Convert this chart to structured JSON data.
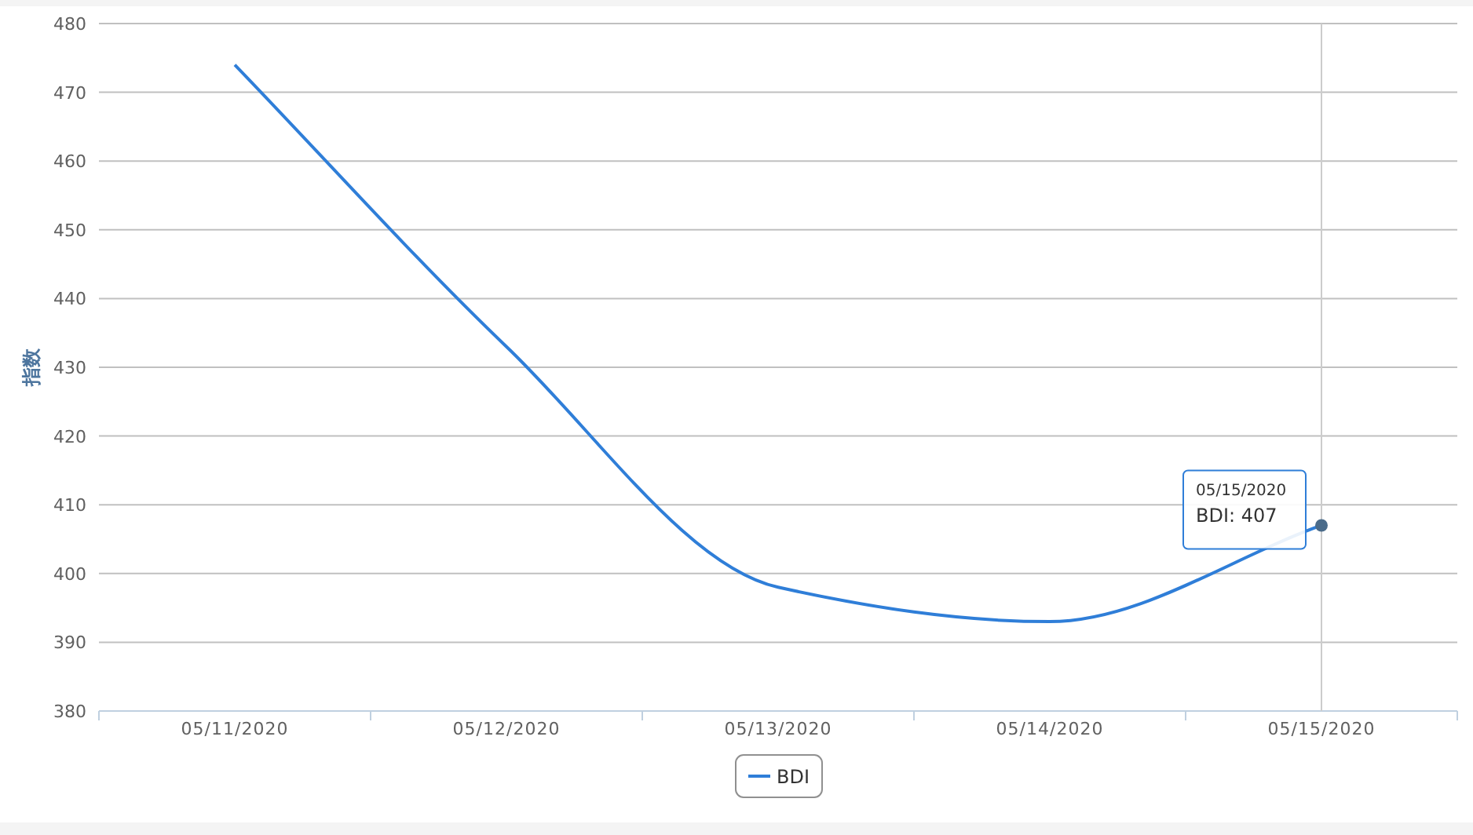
{
  "chart_data": {
    "type": "line",
    "ylabel": "指数",
    "categories": [
      "05/11/2020",
      "05/12/2020",
      "05/13/2020",
      "05/14/2020",
      "05/15/2020"
    ],
    "series": [
      {
        "name": "BDI",
        "color": "#2f7ed8",
        "values": [
          474,
          433,
          398,
          393,
          407
        ]
      }
    ],
    "ylim": [
      380,
      480
    ],
    "yticks": [
      380,
      390,
      400,
      410,
      420,
      430,
      440,
      450,
      460,
      470,
      480
    ],
    "grid": "y",
    "legend": "bottom",
    "marker": "none",
    "line_style": "solid",
    "ref_lines": [
      {
        "axis": "x",
        "value": "05/15/2020",
        "color": "#cccccc"
      }
    ],
    "annotations": [
      {
        "text": "05/15/2020\nBDI: 407",
        "x": "05/15/2020",
        "y": 407
      }
    ]
  }
}
